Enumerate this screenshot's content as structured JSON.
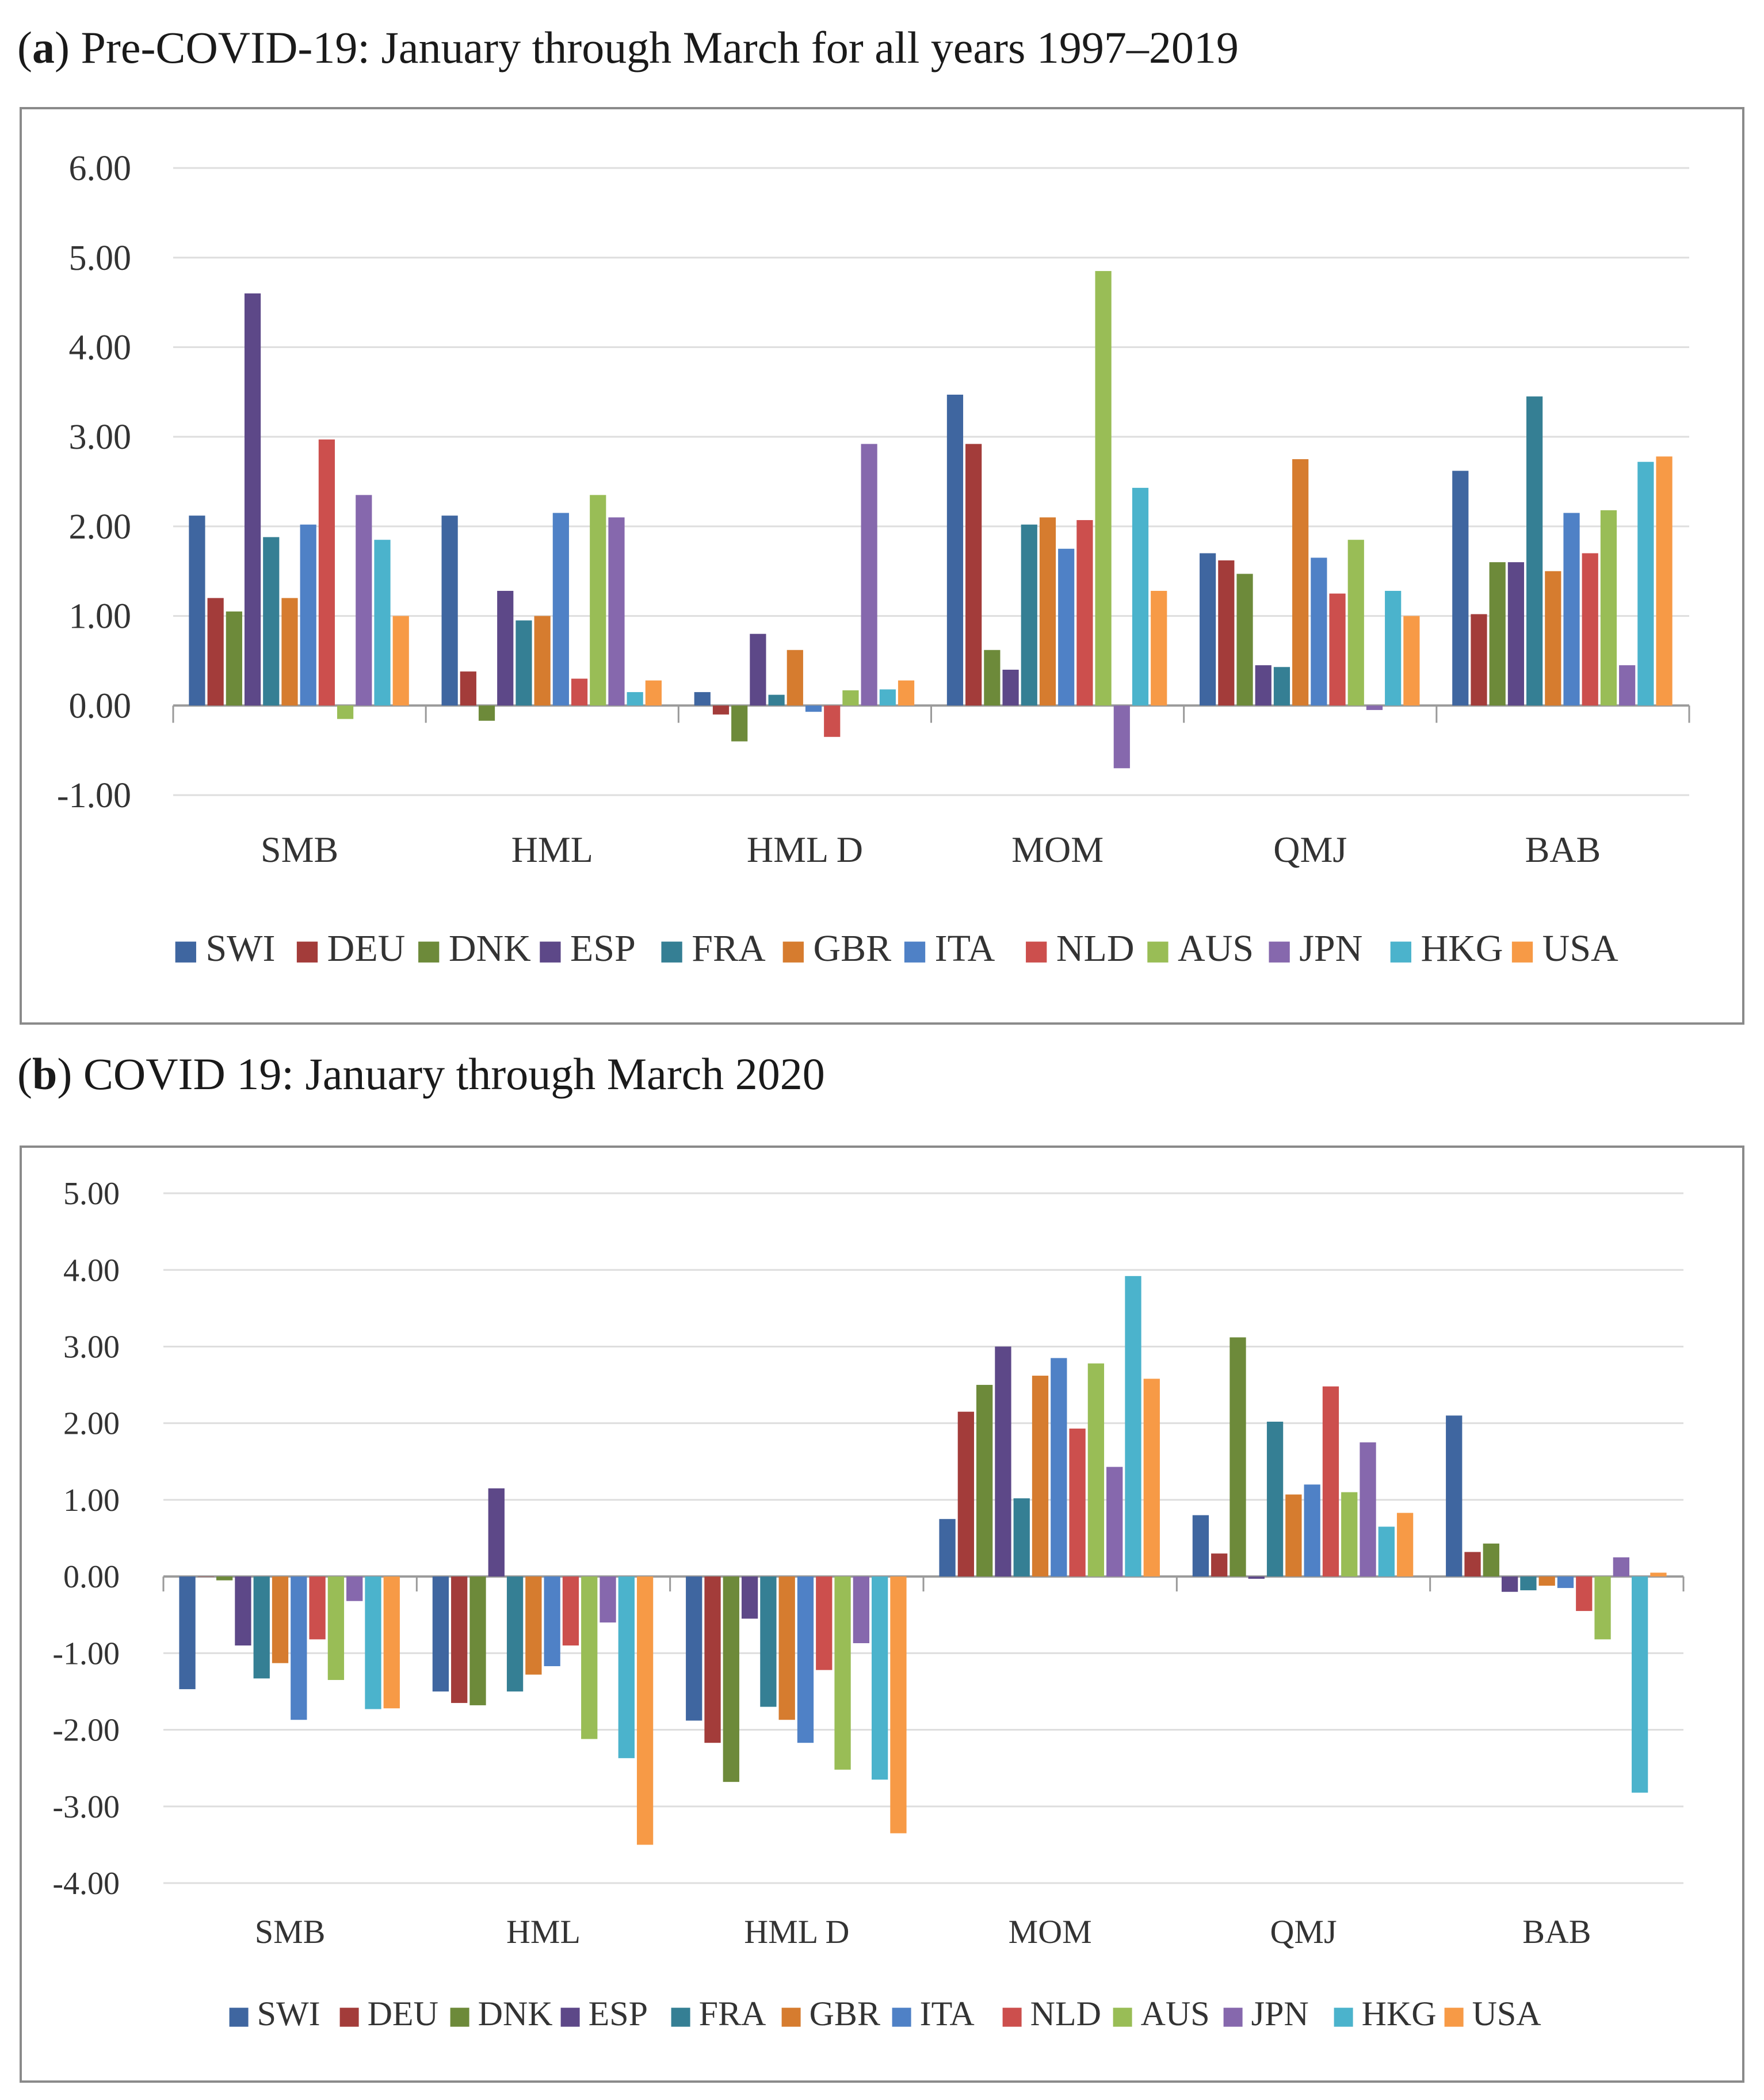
{
  "captions": [
    {
      "letter": "a",
      "text": "Pre-COVID-19: January through March for all years 1997–2019"
    },
    {
      "letter": "b",
      "text": "COVID 19: January through March 2020"
    }
  ],
  "colors": {
    "SWI": "#3f66a0",
    "DEU": "#a33c3a",
    "DNK": "#6d8a3a",
    "ESP": "#5d4888",
    "FRA": "#357f94",
    "GBR": "#d67c2f",
    "ITA": "#4f81c6",
    "NLD": "#cc4f4d",
    "AUS": "#99bd56",
    "JPN": "#8668ad",
    "HKG": "#4bb3cc",
    "USA": "#f79a46"
  },
  "chart_data": [
    {
      "type": "bar",
      "title": "Pre-COVID-19: January through March for all years 1997–2019",
      "categories": [
        "SMB",
        "HML",
        "HML D",
        "MOM",
        "QMJ",
        "BAB"
      ],
      "ylim": [
        -1,
        6
      ],
      "yticks": [
        6,
        5,
        4,
        3,
        2,
        1,
        0,
        -1
      ],
      "ytick_labels": [
        "6.00",
        "5.00",
        "4.00",
        "3.00",
        "2.00",
        "1.00",
        "0.00",
        "-1.00"
      ],
      "grid": true,
      "legend_position": "bottom",
      "series": [
        {
          "name": "SWI",
          "values": [
            2.12,
            2.12,
            0.15,
            3.47,
            1.7,
            2.62
          ]
        },
        {
          "name": "DEU",
          "values": [
            1.2,
            0.38,
            -0.1,
            2.92,
            1.62,
            1.02
          ]
        },
        {
          "name": "DNK",
          "values": [
            1.05,
            -0.17,
            -0.4,
            0.62,
            1.47,
            1.6
          ]
        },
        {
          "name": "ESP",
          "values": [
            4.6,
            1.28,
            0.8,
            0.4,
            0.45,
            1.6
          ]
        },
        {
          "name": "FRA",
          "values": [
            1.88,
            0.95,
            0.12,
            2.02,
            0.43,
            3.45
          ]
        },
        {
          "name": "GBR",
          "values": [
            1.2,
            1.0,
            0.62,
            2.1,
            2.75,
            1.5
          ]
        },
        {
          "name": "ITA",
          "values": [
            2.02,
            2.15,
            -0.07,
            1.75,
            1.65,
            2.15
          ]
        },
        {
          "name": "NLD",
          "values": [
            2.97,
            0.3,
            -0.35,
            2.07,
            1.25,
            1.7
          ]
        },
        {
          "name": "AUS",
          "values": [
            -0.15,
            2.35,
            0.17,
            4.85,
            1.85,
            2.18
          ]
        },
        {
          "name": "JPN",
          "values": [
            2.35,
            2.1,
            2.92,
            -0.7,
            -0.05,
            0.45
          ]
        },
        {
          "name": "HKG",
          "values": [
            1.85,
            0.15,
            0.18,
            2.43,
            1.28,
            2.72
          ]
        },
        {
          "name": "USA",
          "values": [
            1.0,
            0.28,
            0.28,
            1.28,
            1.0,
            2.78
          ]
        }
      ]
    },
    {
      "type": "bar",
      "title": "COVID 19: January through March 2020",
      "categories": [
        "SMB",
        "HML",
        "HML D",
        "MOM",
        "QMJ",
        "BAB"
      ],
      "ylim": [
        -4,
        5
      ],
      "yticks": [
        5,
        4,
        3,
        2,
        1,
        0,
        -1,
        -2,
        -3,
        -4
      ],
      "ytick_labels": [
        "5.00",
        "4.00",
        "3.00",
        "2.00",
        "1.00",
        "0.00",
        "-1.00",
        "-2.00",
        "-3.00",
        "-4.00"
      ],
      "grid": true,
      "legend_position": "bottom",
      "series": [
        {
          "name": "SWI",
          "values": [
            -1.47,
            -1.5,
            -1.88,
            0.75,
            0.8,
            2.1
          ]
        },
        {
          "name": "DEU",
          "values": [
            0.0,
            -1.65,
            -2.17,
            2.15,
            0.3,
            0.32
          ]
        },
        {
          "name": "DNK",
          "values": [
            -0.05,
            -1.68,
            -2.68,
            2.5,
            3.12,
            0.43
          ]
        },
        {
          "name": "ESP",
          "values": [
            -0.9,
            1.15,
            -0.55,
            3.0,
            -0.03,
            -0.2
          ]
        },
        {
          "name": "FRA",
          "values": [
            -1.33,
            -1.5,
            -1.7,
            1.02,
            2.02,
            -0.18
          ]
        },
        {
          "name": "GBR",
          "values": [
            -1.13,
            -1.28,
            -1.87,
            2.62,
            1.07,
            -0.12
          ]
        },
        {
          "name": "ITA",
          "values": [
            -1.87,
            -1.17,
            -2.17,
            2.85,
            1.2,
            -0.15
          ]
        },
        {
          "name": "NLD",
          "values": [
            -0.82,
            -0.9,
            -1.22,
            1.93,
            2.48,
            -0.45
          ]
        },
        {
          "name": "AUS",
          "values": [
            -1.35,
            -2.12,
            -2.52,
            2.78,
            1.1,
            -0.82
          ]
        },
        {
          "name": "JPN",
          "values": [
            -0.32,
            -0.6,
            -0.87,
            1.43,
            1.75,
            0.25
          ]
        },
        {
          "name": "HKG",
          "values": [
            -1.73,
            -2.37,
            -2.65,
            3.92,
            0.65,
            -2.82
          ]
        },
        {
          "name": "USA",
          "values": [
            -1.72,
            -3.5,
            -3.35,
            2.58,
            0.83,
            0.05
          ]
        }
      ]
    }
  ]
}
